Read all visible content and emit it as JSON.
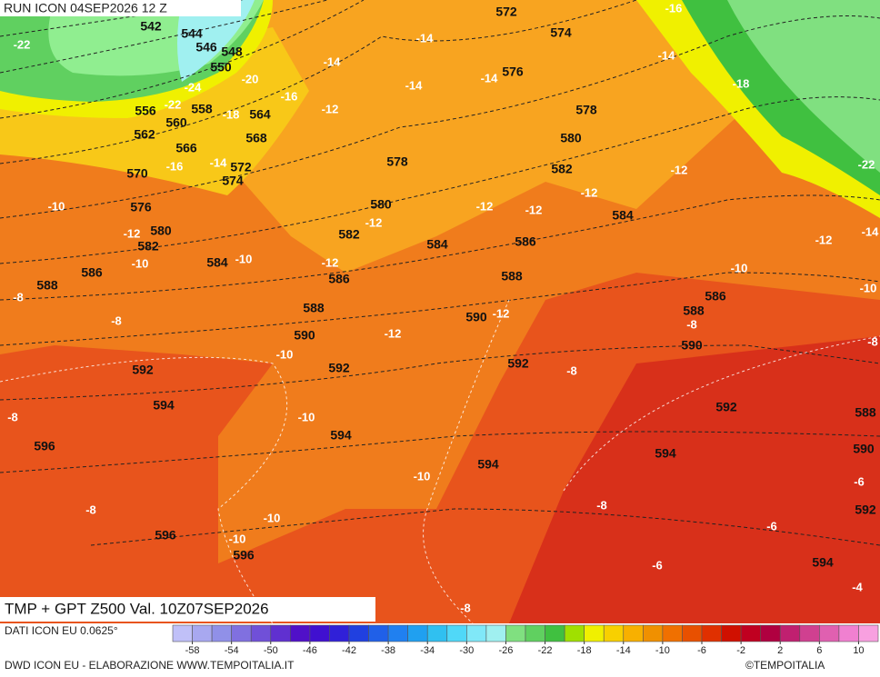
{
  "header": {
    "run": "RUN ICON 04SEP2026 12 Z"
  },
  "map": {
    "gpt_labels": [
      542,
      544,
      546,
      548,
      550,
      556,
      558,
      560,
      562,
      564,
      566,
      568,
      570,
      572,
      574,
      576,
      580,
      582,
      584,
      586,
      588,
      578,
      580,
      582,
      584,
      586,
      588,
      590,
      592,
      592,
      594,
      596,
      594,
      594,
      596,
      596,
      572,
      574,
      576,
      578,
      580,
      582,
      584,
      586,
      588,
      590,
      592,
      586,
      588,
      590,
      592,
      594,
      588,
      590,
      592,
      594
    ],
    "tmp_labels": [
      -22,
      -24,
      -20,
      -22,
      -18,
      -16,
      -14,
      -16,
      -14,
      -12,
      -10,
      -12,
      -10,
      -10,
      -12,
      -12,
      -8,
      -8,
      -12,
      -10,
      -10,
      -8,
      -8,
      -10,
      -10,
      -10,
      -14,
      -14,
      -14,
      -16,
      -14,
      -18,
      -22,
      -14,
      -12,
      -12,
      -12,
      -12,
      -12,
      -10,
      -10,
      -12,
      -8,
      -8,
      -8,
      -8,
      -6,
      -6,
      -6,
      -4,
      -8
    ]
  },
  "footer": {
    "title": "TMP + GPT Z500 Val. 10Z07SEP2026",
    "source": "DATI ICON EU 0.0625°",
    "credit": "DWD ICON EU - ELABORAZIONE WWW.TEMPOITALIA.IT",
    "brand": "©TEMPOITALIA"
  },
  "legend": {
    "range": [
      -60,
      12
    ],
    "ticks": [
      -58,
      -54,
      -50,
      -46,
      -42,
      -38,
      -34,
      -30,
      -26,
      -22,
      -18,
      -14,
      -10,
      -6,
      -2,
      2,
      6,
      10
    ],
    "colors": [
      "#c0c0f8",
      "#a8a8f0",
      "#9090e8",
      "#8070e0",
      "#7050d8",
      "#6030d0",
      "#5010c8",
      "#4010d0",
      "#3020d8",
      "#2040e0",
      "#2060e8",
      "#2080f0",
      "#20a0f0",
      "#30c0f0",
      "#50d8f8",
      "#80e8f8",
      "#a0f0f0",
      "#80e080",
      "#60d060",
      "#40c040",
      "#a0e000",
      "#f0f000",
      "#f8d000",
      "#f8b000",
      "#f09000",
      "#f07000",
      "#e85000",
      "#e03000",
      "#d01000",
      "#c00020",
      "#b00040",
      "#c02070",
      "#d04090",
      "#e060b0",
      "#f080d0",
      "#f8a0e0"
    ]
  }
}
